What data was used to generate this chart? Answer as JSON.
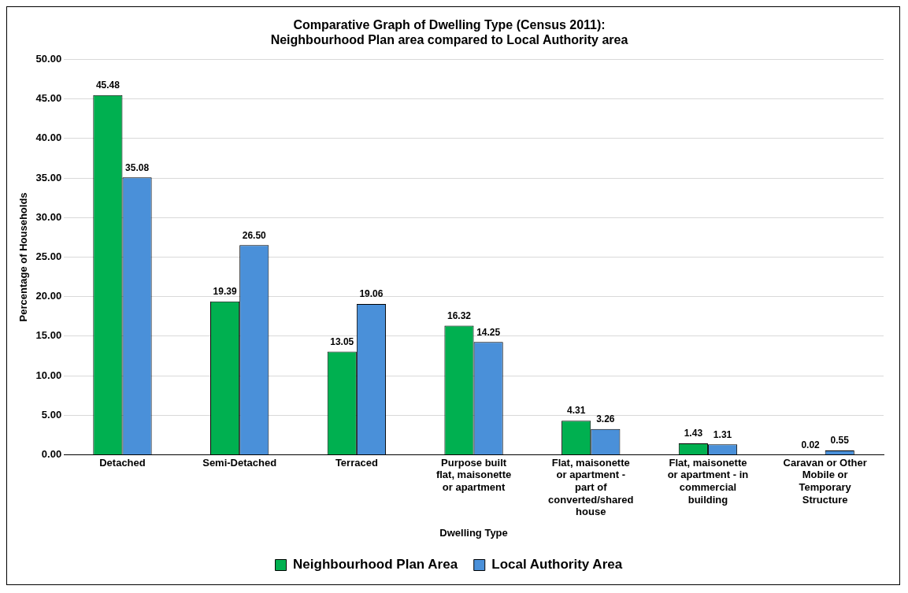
{
  "chart_data": {
    "type": "bar",
    "title": "Comparative Graph of Dwelling Type (Census 2011):\nNeighbourhood Plan area compared to Local Authority area",
    "xlabel": "Dwelling Type",
    "ylabel": "Percentage of Households",
    "categories": [
      "Detached",
      "Semi-Detached",
      "Terraced",
      "Purpose built flat, maisonette or apartment",
      "Flat, maisonette or apartment - part of converted/shared house",
      "Flat, maisonette or apartment - in commercial building",
      "Caravan or Other Mobile or Temporary Structure"
    ],
    "series": [
      {
        "name": "Neighbourhood Plan Area",
        "color": "#00b050",
        "values": [
          45.48,
          19.39,
          13.05,
          16.32,
          4.31,
          1.43,
          0.02
        ],
        "value_labels": [
          "45.48",
          "19.39",
          "13.05",
          "16.32",
          "4.31",
          "1.43",
          "0.02"
        ]
      },
      {
        "name": "Local Authority Area",
        "color": "#4a90d9",
        "values": [
          35.08,
          26.5,
          19.06,
          14.25,
          3.26,
          1.31,
          0.55
        ],
        "value_labels": [
          "35.08",
          "26.50",
          "19.06",
          "14.25",
          "3.26",
          "1.31",
          "0.55"
        ]
      }
    ],
    "ylim": [
      0,
      50
    ],
    "yticks": [
      {
        "value": 0,
        "label": "0.00"
      },
      {
        "value": 5,
        "label": "5.00"
      },
      {
        "value": 10,
        "label": "10.00"
      },
      {
        "value": 15,
        "label": "15.00"
      },
      {
        "value": 20,
        "label": "20.00"
      },
      {
        "value": 25,
        "label": "25.00"
      },
      {
        "value": 30,
        "label": "30.00"
      },
      {
        "value": 35,
        "label": "35.00"
      },
      {
        "value": 40,
        "label": "40.00"
      },
      {
        "value": 45,
        "label": "45.00"
      },
      {
        "value": 50,
        "label": "50.00"
      }
    ],
    "grid": "y",
    "legend": "bottom"
  }
}
